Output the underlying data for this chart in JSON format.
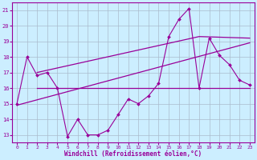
{
  "background_color": "#cceeff",
  "grid_color": "#aabbcc",
  "line_color": "#990099",
  "x_ticks": [
    0,
    1,
    2,
    3,
    4,
    5,
    6,
    7,
    8,
    9,
    10,
    11,
    12,
    13,
    14,
    15,
    16,
    17,
    18,
    19,
    20,
    21,
    22,
    23
  ],
  "y_ticks": [
    13,
    14,
    15,
    16,
    17,
    18,
    19,
    20,
    21
  ],
  "xlim": [
    -0.5,
    23.5
  ],
  "ylim": [
    12.5,
    21.5
  ],
  "xlabel": "Windchill (Refroidissement éolien,°C)",
  "series1": [
    15,
    18,
    16.8,
    17,
    16,
    12.9,
    14,
    13,
    13,
    13.3,
    14.3,
    15.3,
    15,
    15.5,
    16.3,
    19.3,
    20.4,
    21.1,
    16,
    19.2,
    18.1,
    17.5,
    16.5,
    16.2
  ],
  "series2_x": [
    2,
    23
  ],
  "series2_y": [
    16,
    16
  ],
  "series3_x": [
    0,
    23
  ],
  "series3_y": [
    14.9,
    18.9
  ],
  "series4_x": [
    2,
    18,
    23
  ],
  "series4_y": [
    17,
    19.3,
    19.2
  ]
}
